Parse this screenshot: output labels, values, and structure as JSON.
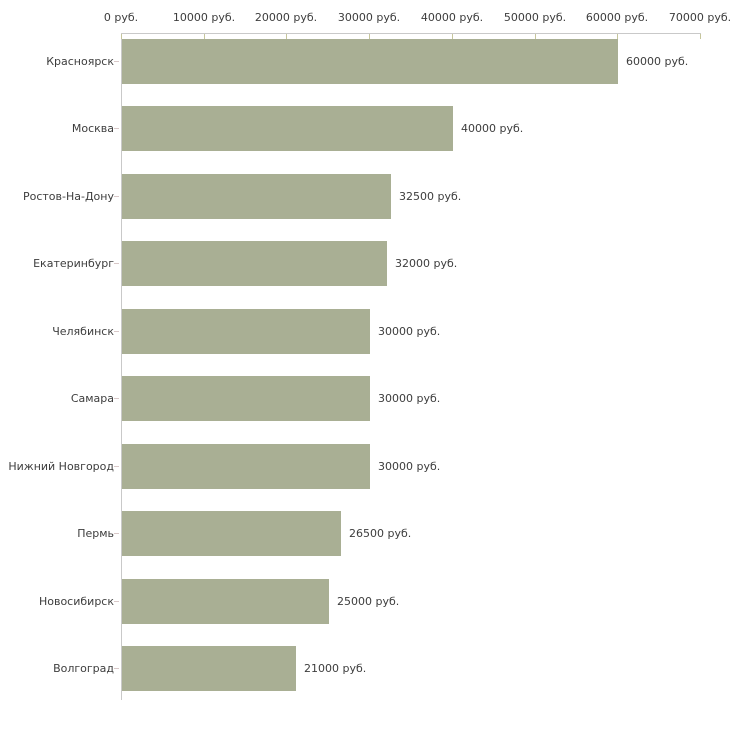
{
  "chart_data": {
    "type": "bar",
    "orientation": "horizontal",
    "title": "",
    "categories": [
      "Красноярск",
      "Москва",
      "Ростов-На-Дону",
      "Екатеринбург",
      "Челябинск",
      "Самара",
      "Нижний Новгород",
      "Пермь",
      "Новосибирск",
      "Волгоград"
    ],
    "values": [
      60000,
      40000,
      32500,
      32000,
      30000,
      30000,
      30000,
      26500,
      25000,
      21000
    ],
    "value_labels": [
      "60000 руб.",
      "40000 руб.",
      "32500 руб.",
      "32000 руб.",
      "30000 руб.",
      "30000 руб.",
      "30000 руб.",
      "26500 руб.",
      "25000 руб.",
      "21000 руб."
    ],
    "xlabel": "",
    "ylabel": "",
    "x_axis": {
      "min": 0,
      "max": 70000,
      "tick_step": 10000,
      "tick_values": [
        0,
        10000,
        20000,
        30000,
        40000,
        50000,
        60000,
        70000
      ],
      "tick_labels": [
        "0 руб.",
        "10000 руб.",
        "20000 руб.",
        "30000 руб.",
        "40000 руб.",
        "50000 руб.",
        "60000 руб.",
        "70000 руб."
      ],
      "position": "top"
    },
    "legend": "none",
    "grid": "off",
    "colors": {
      "bar_fill": "#a9af94",
      "axis_line": "#c9c9c9",
      "x_tick": "#c6c69c",
      "y_tick": "#d8c8c8",
      "text": "#3d3d3d",
      "background": "#ffffff"
    }
  }
}
